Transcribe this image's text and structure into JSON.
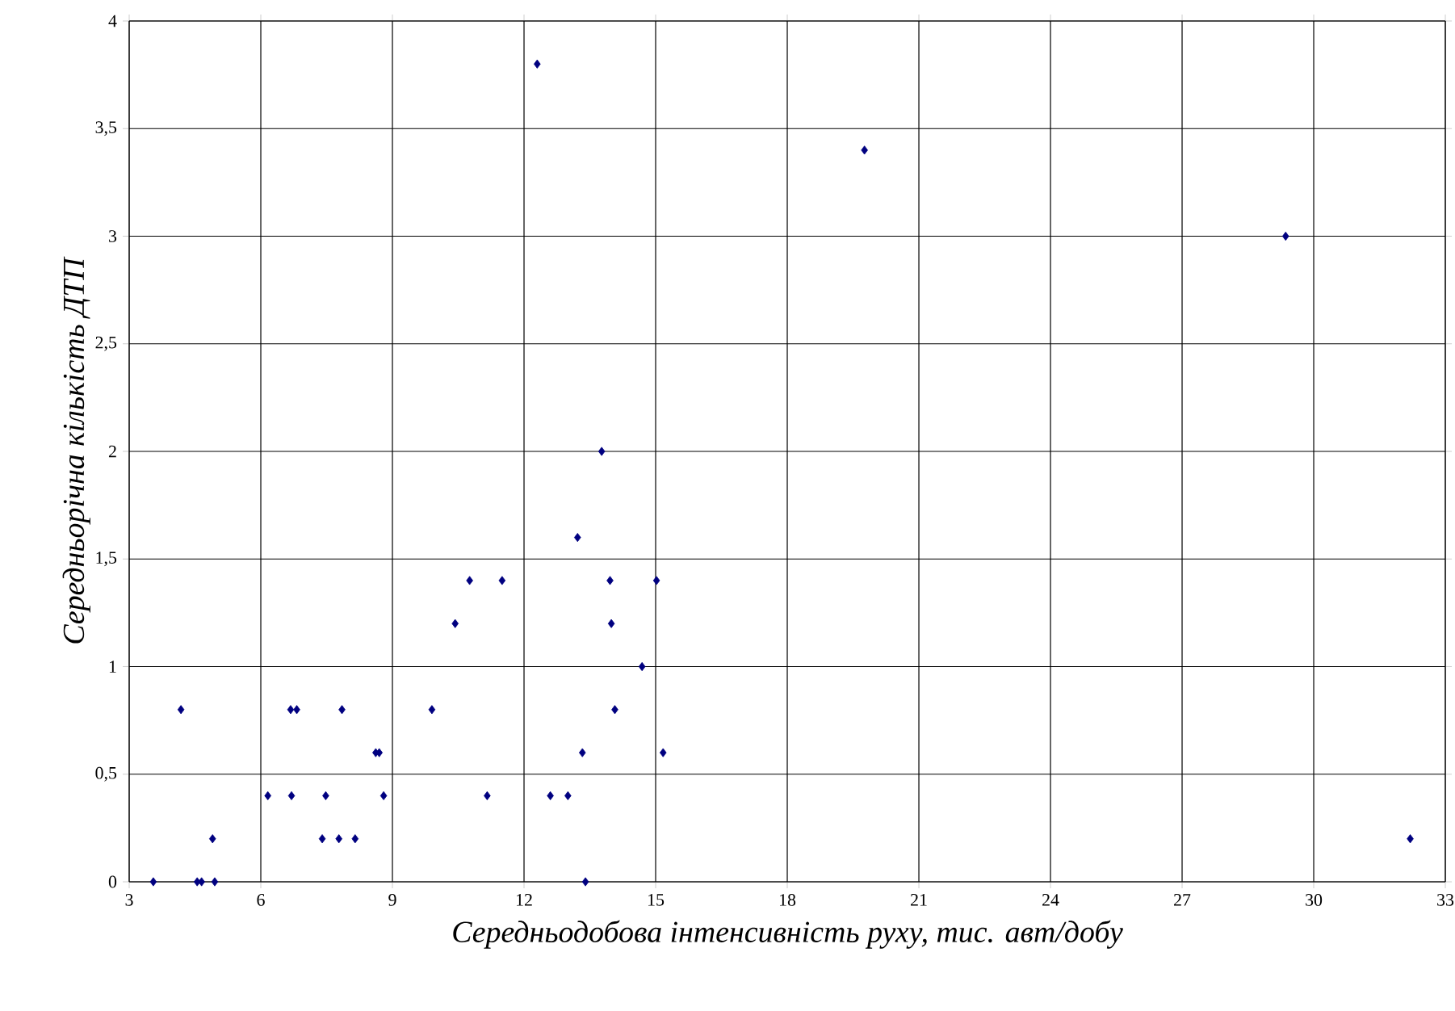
{
  "chart_data": {
    "type": "scatter",
    "xlabel": "Середньодобова інтенсивність руху, тис. авт/добу",
    "ylabel": "Середньорічна кількість ДТП",
    "x": [
      3.55,
      4.18,
      4.55,
      4.65,
      4.9,
      4.95,
      6.16,
      6.7,
      6.68,
      6.82,
      7.4,
      7.48,
      7.78,
      7.85,
      8.15,
      8.62,
      8.7,
      8.8,
      9.9,
      10.43,
      10.76,
      11.16,
      11.5,
      12.3,
      12.6,
      13.0,
      13.22,
      13.33,
      13.4,
      13.77,
      13.96,
      13.99,
      14.07,
      14.69,
      15.02,
      15.17,
      19.76,
      29.36,
      32.2
    ],
    "values": [
      0,
      0.8,
      0,
      0,
      0.2,
      0,
      0.4,
      0.4,
      0.8,
      0.8,
      0.2,
      0.4,
      0.2,
      0.8,
      0.2,
      0.6,
      0.6,
      0.4,
      0.8,
      1.2,
      1.4,
      0.4,
      1.4,
      3.8,
      0.4,
      0.4,
      1.6,
      0.6,
      0,
      2.0,
      1.4,
      1.2,
      0.8,
      1.0,
      1.4,
      0.6,
      3.4,
      3.0,
      0.2
    ],
    "color": "#000080",
    "marker": "diamond",
    "grid": true,
    "xlim": [
      3,
      33
    ],
    "xticks": [
      3,
      6,
      9,
      12,
      15,
      18,
      21,
      24,
      27,
      30,
      33
    ],
    "ylim": [
      0,
      4
    ],
    "yticks": [
      0,
      {
        "value": 0.5,
        "label": "0,5"
      },
      1,
      {
        "value": 1.5,
        "label": "1,5"
      },
      2,
      {
        "value": 2.5,
        "label": "2,5"
      },
      3,
      {
        "value": 3.5,
        "label": "3,5"
      },
      4
    ]
  }
}
